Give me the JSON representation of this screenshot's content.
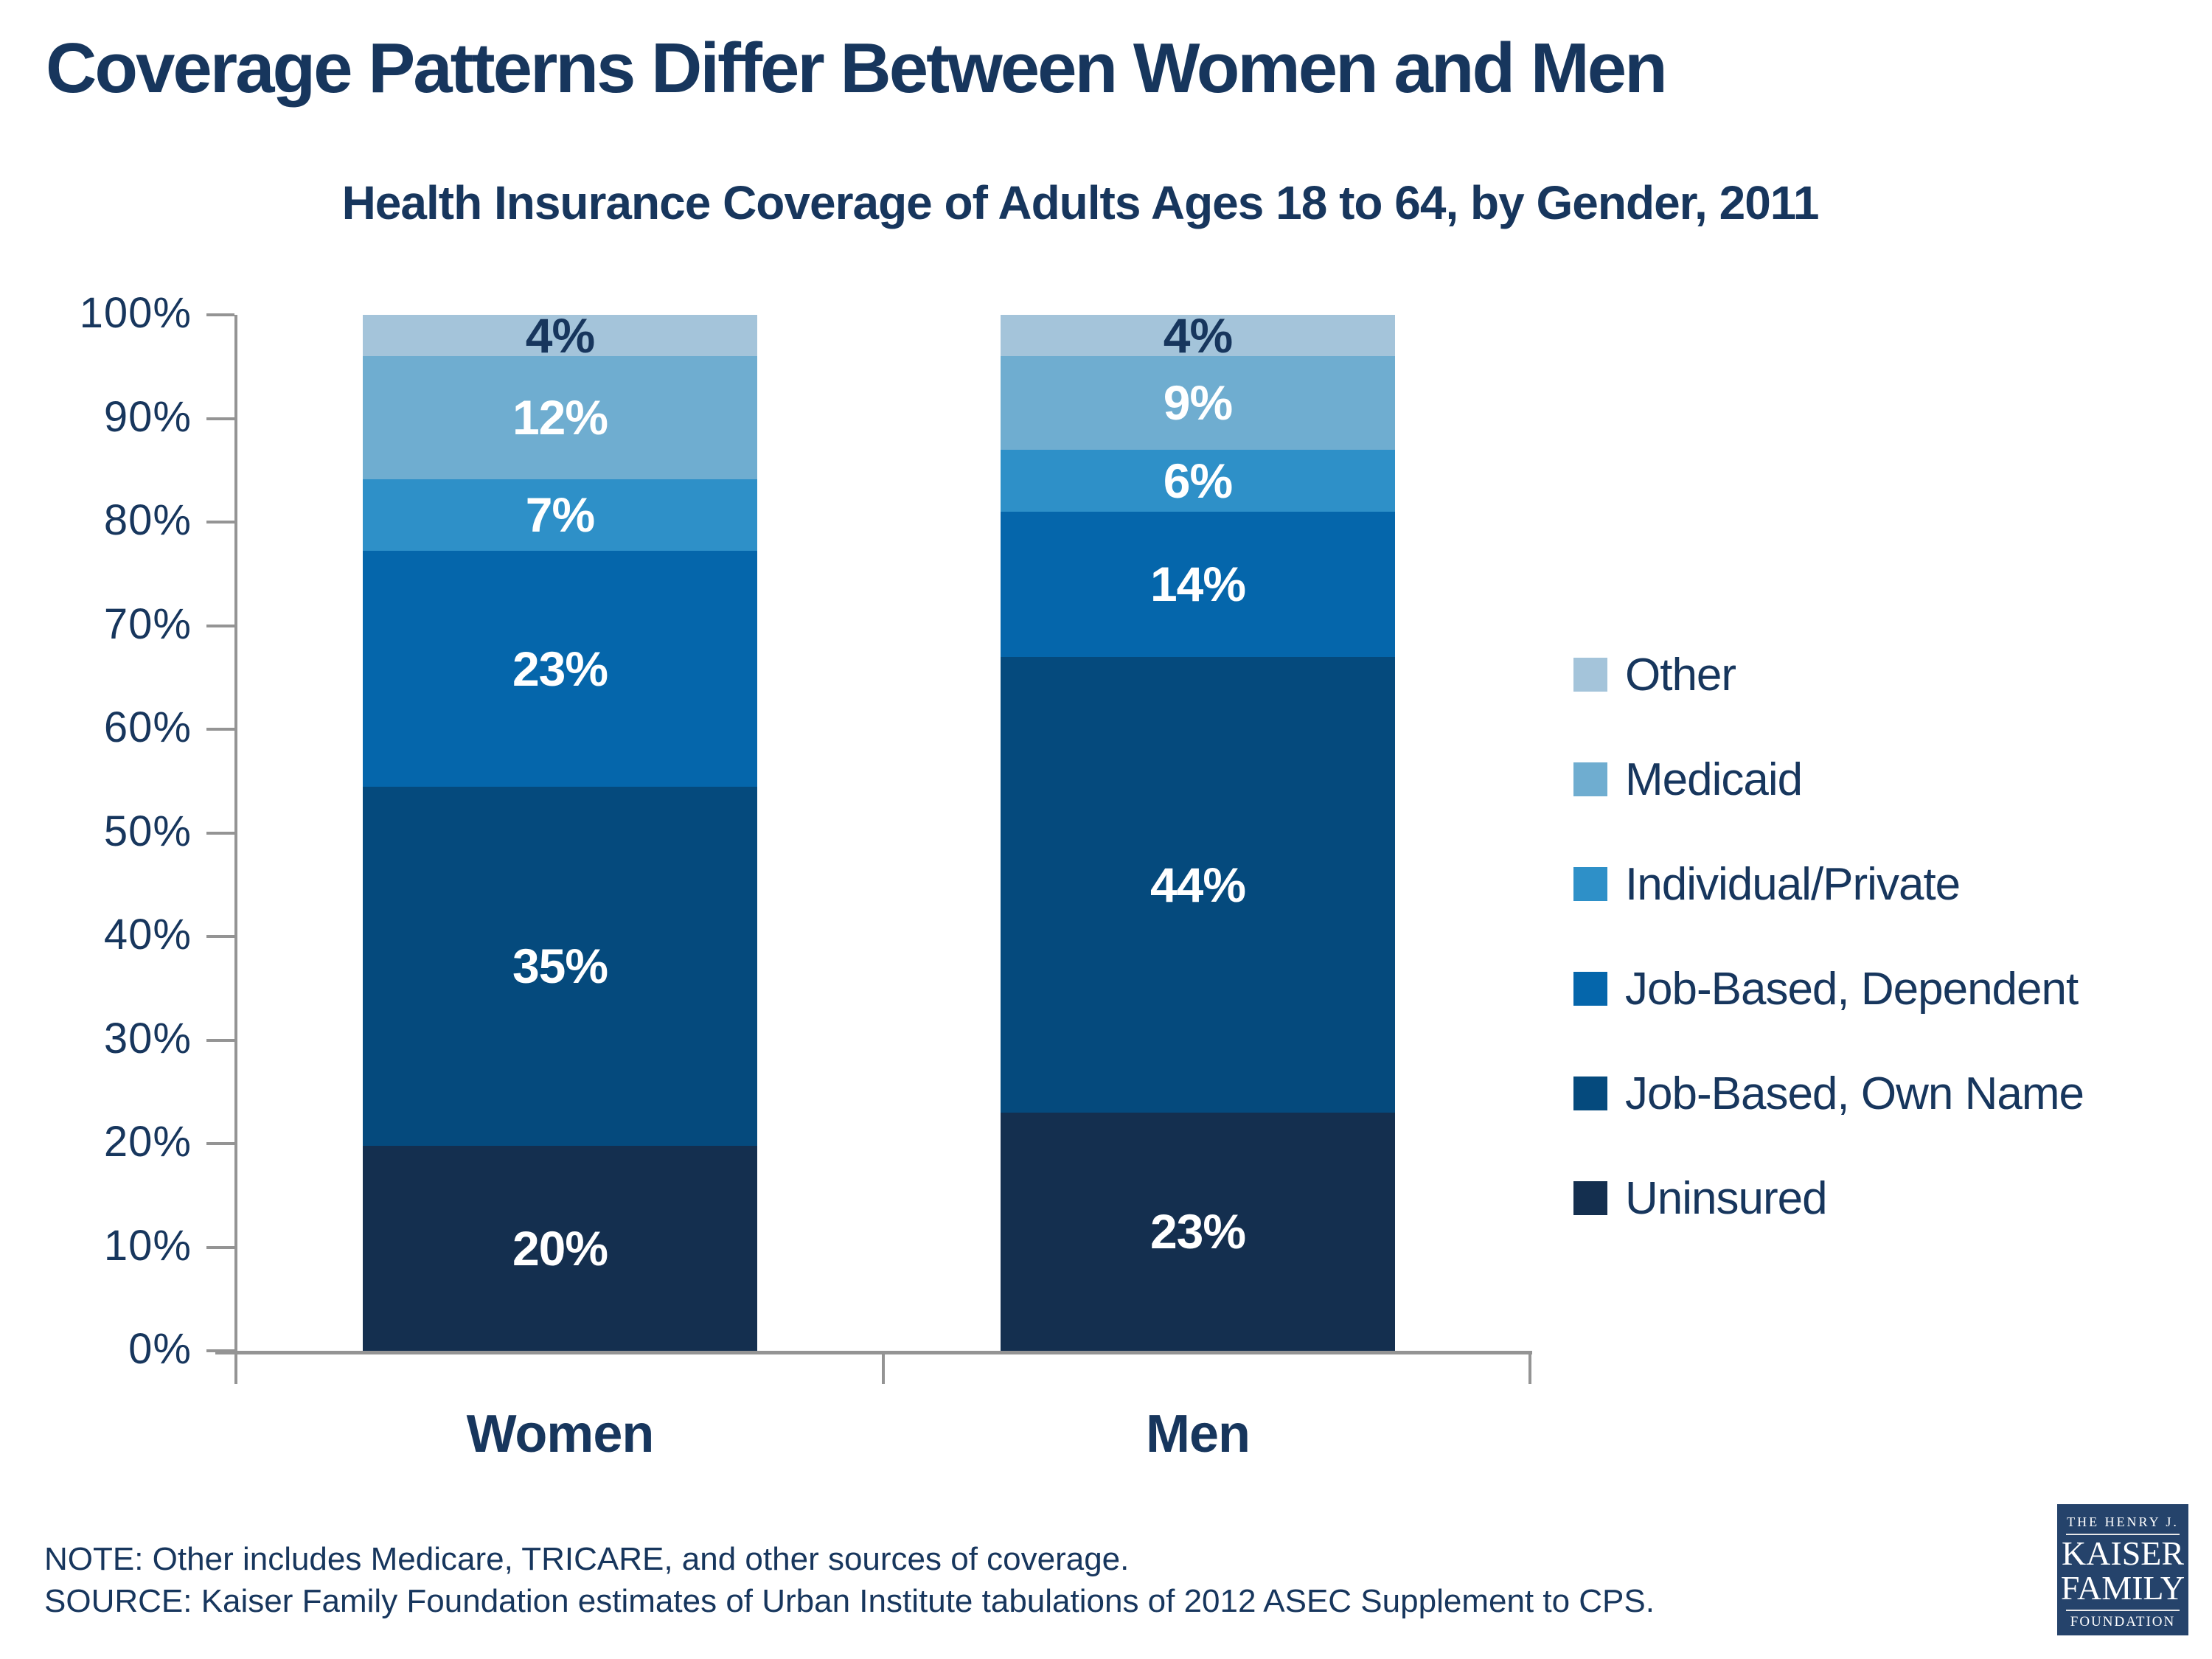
{
  "title": "Coverage Patterns Differ Between Women and Men",
  "subtitle": "Health Insurance Coverage of Adults Ages 18 to 64, by Gender, 2011",
  "palette": {
    "text_navy": "#17365d",
    "axis_gray": "#949494",
    "logo_bg": "#25436b",
    "label_on_dark": "#ffffff",
    "label_on_light": "#17365d"
  },
  "chart_data": {
    "type": "bar",
    "stacked": true,
    "grid": false,
    "legend_position": "right",
    "categories": [
      "Women",
      "Men"
    ],
    "series": [
      {
        "name": "Uninsured",
        "color": "#142f4f",
        "values": [
          20,
          23
        ],
        "label_color": "#ffffff"
      },
      {
        "name": "Job-Based, Own Name",
        "color": "#054a7d",
        "values": [
          35,
          44
        ],
        "label_color": "#ffffff"
      },
      {
        "name": "Job-Based, Dependent",
        "color": "#0566ab",
        "values": [
          23,
          14
        ],
        "label_color": "#ffffff"
      },
      {
        "name": "Individual/Private",
        "color": "#2e90c8",
        "values": [
          7,
          6
        ],
        "label_color": "#ffffff"
      },
      {
        "name": "Medicaid",
        "color": "#6fadd0",
        "values": [
          12,
          9
        ],
        "label_color": "#ffffff"
      },
      {
        "name": "Other",
        "color": "#a4c4da",
        "values": [
          4,
          4
        ],
        "label_color": "#17365d"
      }
    ],
    "legend_order_top_down": [
      "Other",
      "Medicaid",
      "Individual/Private",
      "Job-Based, Dependent",
      "Job-Based, Own Name",
      "Uninsured"
    ],
    "ylabel": "",
    "xlabel": "",
    "ylim": [
      0,
      100
    ],
    "y_ticks": [
      "0%",
      "10%",
      "20%",
      "30%",
      "40%",
      "50%",
      "60%",
      "70%",
      "80%",
      "90%",
      "100%"
    ]
  },
  "note": "NOTE:  Other includes Medicare, TRICARE, and other sources of coverage.",
  "source": "SOURCE:  Kaiser Family Foundation estimates of Urban Institute tabulations of 2012 ASEC Supplement to CPS.",
  "logo": {
    "line1": "THE HENRY J.",
    "line2": "KAISER",
    "line3": "FAMILY",
    "line4": "FOUNDATION"
  }
}
